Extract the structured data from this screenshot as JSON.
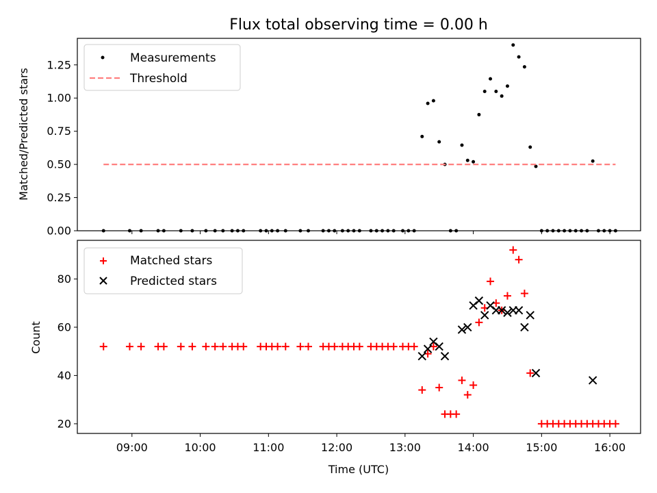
{
  "chart_data": [
    {
      "type": "scatter",
      "title": "Flux total observing time = 0.00 h",
      "xlabel": "",
      "ylabel": "Matched/Predicted stars",
      "xlim": [
        "08:12",
        "16:27"
      ],
      "ylim": [
        0,
        1.45
      ],
      "yticks": [
        "0.00",
        "0.25",
        "0.50",
        "0.75",
        "1.00",
        "1.25"
      ],
      "grid": false,
      "legend": "top-left",
      "series": [
        {
          "name": "Measurements",
          "marker": "dot",
          "color": "#000000",
          "points": [
            [
              "08:35",
              0
            ],
            [
              "08:58",
              0
            ],
            [
              "09:08",
              0
            ],
            [
              "09:23",
              0
            ],
            [
              "09:28",
              0
            ],
            [
              "09:43",
              0
            ],
            [
              "09:53",
              0
            ],
            [
              "10:05",
              0
            ],
            [
              "10:13",
              0
            ],
            [
              "10:20",
              0
            ],
            [
              "10:28",
              0
            ],
            [
              "10:33",
              0
            ],
            [
              "10:38",
              0
            ],
            [
              "10:53",
              0
            ],
            [
              "10:58",
              0
            ],
            [
              "11:03",
              0
            ],
            [
              "11:08",
              0
            ],
            [
              "11:15",
              0
            ],
            [
              "11:28",
              0
            ],
            [
              "11:35",
              0
            ],
            [
              "11:48",
              0
            ],
            [
              "11:53",
              0
            ],
            [
              "11:58",
              0
            ],
            [
              "12:05",
              0
            ],
            [
              "12:10",
              0
            ],
            [
              "12:15",
              0
            ],
            [
              "12:20",
              0
            ],
            [
              "12:30",
              0
            ],
            [
              "12:35",
              0
            ],
            [
              "12:40",
              0
            ],
            [
              "12:45",
              0
            ],
            [
              "12:50",
              0
            ],
            [
              "12:58",
              0
            ],
            [
              "13:03",
              0
            ],
            [
              "13:08",
              0
            ],
            [
              "13:15",
              0.71
            ],
            [
              "13:20",
              0.96
            ],
            [
              "13:25",
              0.98
            ],
            [
              "13:30",
              0.67
            ],
            [
              "13:35",
              0.5
            ],
            [
              "13:40",
              0
            ],
            [
              "13:45",
              0
            ],
            [
              "13:50",
              0.645
            ],
            [
              "13:55",
              0.53
            ],
            [
              "14:00",
              0.52
            ],
            [
              "14:05",
              0.875
            ],
            [
              "14:10",
              1.05
            ],
            [
              "14:15",
              1.145
            ],
            [
              "14:20",
              1.05
            ],
            [
              "14:25",
              1.015
            ],
            [
              "14:30",
              1.09
            ],
            [
              "14:35",
              1.4
            ],
            [
              "14:40",
              1.31
            ],
            [
              "14:45",
              1.235
            ],
            [
              "14:50",
              0.63
            ],
            [
              "14:55",
              0.485
            ],
            [
              "15:00",
              0
            ],
            [
              "15:05",
              0
            ],
            [
              "15:10",
              0
            ],
            [
              "15:15",
              0
            ],
            [
              "15:20",
              0
            ],
            [
              "15:25",
              0
            ],
            [
              "15:30",
              0
            ],
            [
              "15:35",
              0
            ],
            [
              "15:40",
              0
            ],
            [
              "15:45",
              0.525
            ],
            [
              "15:50",
              0
            ],
            [
              "15:55",
              0
            ],
            [
              "16:00",
              0
            ],
            [
              "16:05",
              0
            ]
          ]
        },
        {
          "name": "Threshold",
          "marker": "dashed-line",
          "color": "#ff7f7f",
          "points": [
            [
              "08:35",
              0.5
            ],
            [
              "16:05",
              0.5
            ]
          ]
        }
      ]
    },
    {
      "type": "scatter",
      "title": "",
      "xlabel": "Time (UTC)",
      "ylabel": "Count",
      "xlim": [
        "08:12",
        "16:27"
      ],
      "ylim": [
        16,
        96
      ],
      "xticks": [
        "09:00",
        "10:00",
        "11:00",
        "12:00",
        "13:00",
        "14:00",
        "15:00",
        "16:00"
      ],
      "yticks": [
        "20",
        "40",
        "60",
        "80"
      ],
      "grid": false,
      "legend": "top-left",
      "series": [
        {
          "name": "Matched stars",
          "marker": "plus",
          "color": "#ff0000",
          "points": [
            [
              "08:35",
              52
            ],
            [
              "08:58",
              52
            ],
            [
              "09:08",
              52
            ],
            [
              "09:23",
              52
            ],
            [
              "09:28",
              52
            ],
            [
              "09:43",
              52
            ],
            [
              "09:53",
              52
            ],
            [
              "10:05",
              52
            ],
            [
              "10:13",
              52
            ],
            [
              "10:20",
              52
            ],
            [
              "10:28",
              52
            ],
            [
              "10:33",
              52
            ],
            [
              "10:38",
              52
            ],
            [
              "10:53",
              52
            ],
            [
              "10:58",
              52
            ],
            [
              "11:03",
              52
            ],
            [
              "11:08",
              52
            ],
            [
              "11:15",
              52
            ],
            [
              "11:28",
              52
            ],
            [
              "11:35",
              52
            ],
            [
              "11:48",
              52
            ],
            [
              "11:53",
              52
            ],
            [
              "11:58",
              52
            ],
            [
              "12:05",
              52
            ],
            [
              "12:10",
              52
            ],
            [
              "12:15",
              52
            ],
            [
              "12:20",
              52
            ],
            [
              "12:30",
              52
            ],
            [
              "12:35",
              52
            ],
            [
              "12:40",
              52
            ],
            [
              "12:45",
              52
            ],
            [
              "12:50",
              52
            ],
            [
              "12:58",
              52
            ],
            [
              "13:03",
              52
            ],
            [
              "13:08",
              52
            ],
            [
              "13:15",
              34
            ],
            [
              "13:20",
              49
            ],
            [
              "13:25",
              52
            ],
            [
              "13:30",
              35
            ],
            [
              "13:35",
              24
            ],
            [
              "13:40",
              24
            ],
            [
              "13:45",
              24
            ],
            [
              "13:50",
              38
            ],
            [
              "13:55",
              32
            ],
            [
              "14:00",
              36
            ],
            [
              "14:05",
              62
            ],
            [
              "14:10",
              68
            ],
            [
              "14:15",
              79
            ],
            [
              "14:20",
              70
            ],
            [
              "14:25",
              67
            ],
            [
              "14:30",
              73
            ],
            [
              "14:35",
              92
            ],
            [
              "14:40",
              88
            ],
            [
              "14:45",
              74
            ],
            [
              "14:50",
              41
            ],
            [
              "15:00",
              20
            ],
            [
              "15:05",
              20
            ],
            [
              "15:10",
              20
            ],
            [
              "15:15",
              20
            ],
            [
              "15:20",
              20
            ],
            [
              "15:25",
              20
            ],
            [
              "15:30",
              20
            ],
            [
              "15:35",
              20
            ],
            [
              "15:40",
              20
            ],
            [
              "15:45",
              20
            ],
            [
              "15:50",
              20
            ],
            [
              "15:55",
              20
            ],
            [
              "16:00",
              20
            ],
            [
              "16:05",
              20
            ]
          ]
        },
        {
          "name": "Predicted stars",
          "marker": "x",
          "color": "#000000",
          "points": [
            [
              "13:15",
              48
            ],
            [
              "13:20",
              51
            ],
            [
              "13:25",
              54
            ],
            [
              "13:30",
              52
            ],
            [
              "13:35",
              48
            ],
            [
              "13:50",
              59
            ],
            [
              "13:55",
              60
            ],
            [
              "14:00",
              69
            ],
            [
              "14:05",
              71
            ],
            [
              "14:10",
              65
            ],
            [
              "14:15",
              69
            ],
            [
              "14:20",
              67
            ],
            [
              "14:25",
              67
            ],
            [
              "14:30",
              66
            ],
            [
              "14:35",
              67
            ],
            [
              "14:40",
              67
            ],
            [
              "14:45",
              60
            ],
            [
              "14:50",
              65
            ],
            [
              "14:55",
              41
            ],
            [
              "15:45",
              38
            ]
          ]
        }
      ]
    }
  ]
}
